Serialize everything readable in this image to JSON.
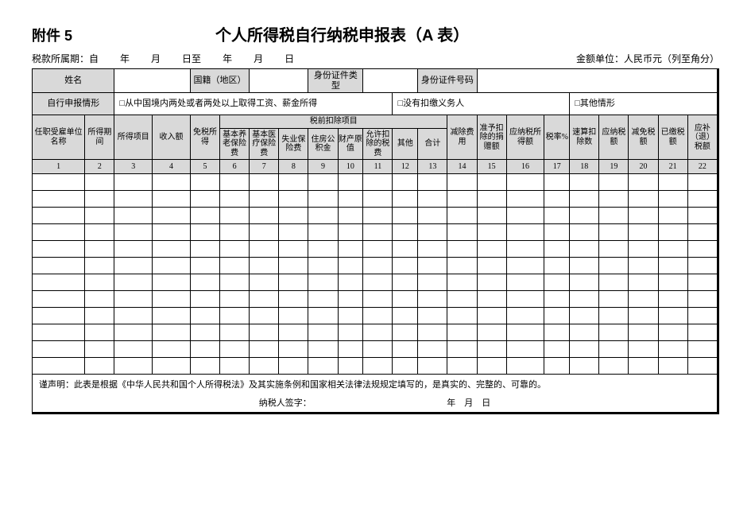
{
  "attachment_label": "附件 5",
  "title": "个人所得税自行纳税申报表（A 表）",
  "period_label": "税款所属期：自",
  "period_year": "年",
  "period_month": "月",
  "period_day_to": "日至",
  "period_day": "日",
  "unit_label": "金额单位：人民币元（列至角分）",
  "info": {
    "name_label": "姓名",
    "nationality_label": "国籍（地区）",
    "id_type_label": "身份证件类型",
    "id_number_label": "身份证件号码"
  },
  "declare_row": {
    "label": "自行申报情形",
    "opt1": "□从中国境内两处或者两处以上取得工资、薪金所得",
    "opt2": "□没有扣缴义务人",
    "opt3": "□其他情形"
  },
  "headers": {
    "h1": "任职受雇单位名称",
    "h2": "所得期间",
    "h3": "所得项目",
    "h4": "收入额",
    "h5": "免税所得",
    "pre_deduct_group": "税前扣除项目",
    "h6": "基本养老保险费",
    "h7": "基本医疗保险费",
    "h8": "失业保险费",
    "h9": "住房公积金",
    "h10": "财产原值",
    "h11": "允许扣除的税费",
    "h12": "其他",
    "h13": "合计",
    "h14": "减除费用",
    "h15": "准予扣除的捐赠额",
    "h16": "应纳税所得额",
    "h17": "税率%",
    "h18": "速算扣除数",
    "h19": "应纳税额",
    "h20": "减免税额",
    "h21": "已缴税额",
    "h22": "应补（退）税额"
  },
  "col_numbers": [
    "1",
    "2",
    "3",
    "4",
    "5",
    "6",
    "7",
    "8",
    "9",
    "10",
    "11",
    "12",
    "13",
    "14",
    "15",
    "16",
    "17",
    "18",
    "19",
    "20",
    "21",
    "22"
  ],
  "declaration": "谨声明：此表是根据《中华人民共和国个人所得税法》及其实施条例和国家相关法律法规规定填写的，是真实的、完整的、可靠的。",
  "signature_line": "纳税人签字：　　　　　　　　　　　　　　　　年　月　日",
  "blank_rows": 12
}
